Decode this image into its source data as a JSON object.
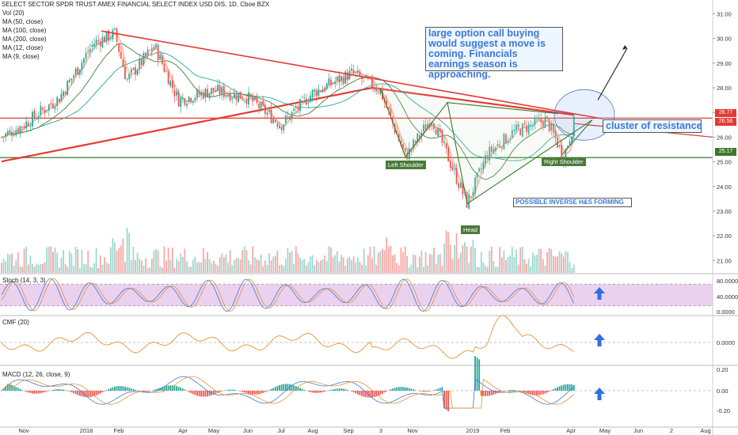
{
  "title": "SELECT SECTOR SPDR TRUST AMEX FINANCIAL SELECT INDEX USD DIS, 1D, Cboe BZX",
  "indicators": [
    "Vol (20)",
    "MA (50, close)",
    "MA (100, close)",
    "MA (200, close)",
    "MA (12, close)",
    "MA (9, close)"
  ],
  "annotations": {
    "option_note": "large option call buying would suggest a move is coming. Financials earnings season is approaching.",
    "cluster": "cluster of resistance",
    "pattern": "POSSIBLE INVERSE H&S FORMING",
    "left_shoulder": "Left Shoulder",
    "head": "Head",
    "right_shoulder": "Right Shoulder"
  },
  "price_tags": [
    "26.77",
    "26.56",
    "25.17"
  ],
  "subpanels": {
    "stoch_label": "Stoch (14, 3, 3)",
    "cmf_label": "CMF (20)",
    "macd_label": "MACD (12, 26, close, 9)"
  },
  "colors": {
    "up": "#26a69a",
    "down": "#ef5350",
    "resistance": "#e53935",
    "support": "#3b7a2a",
    "ma200": "#e53935",
    "ma100": "#26a69a",
    "ma50": "#4a7a3a",
    "annotation_text": "#3c78d8",
    "stoch_band": "#e1bee7"
  },
  "chart_data": {
    "type": "candlestick",
    "x_tick_labels": [
      "Nov",
      "2018",
      "Feb",
      "Apr",
      "May",
      "Jun",
      "Jul",
      "Aug",
      "Sep",
      "3",
      "Nov",
      "2019",
      "Feb",
      "Apr",
      "May",
      "Jun",
      "2",
      "Aug"
    ],
    "y_tick_labels": [
      "31.00",
      "30.00",
      "29.00",
      "28.00",
      "27.00",
      "26.00",
      "25.00",
      "24.00",
      "23.00",
      "22.00",
      "21.00"
    ],
    "ylim": [
      20.5,
      31.3
    ],
    "price_path": [
      [
        "Oct 2017",
        26.0
      ],
      [
        "Nov 2017",
        26.5
      ],
      [
        "Dec 2017",
        27.6
      ],
      [
        "Jan 2018",
        29.8
      ],
      [
        "late Jan 2018",
        30.2
      ],
      [
        "Feb 2018",
        28.3
      ],
      [
        "Mar 2018",
        29.7
      ],
      [
        "Apr 2018",
        27.5
      ],
      [
        "May 2018",
        27.9
      ],
      [
        "Jun 2018",
        27.6
      ],
      [
        "Jul 2018",
        26.5
      ],
      [
        "Aug 2018",
        27.8
      ],
      [
        "Sep 2018",
        28.6
      ],
      [
        "early Oct 2018",
        27.9
      ],
      [
        "Oct 2018 (left shoulder)",
        25.2
      ],
      [
        "Nov 2018",
        26.8
      ],
      [
        "Dec 2018 (head)",
        23.3
      ],
      [
        "Jan 2019",
        25.3
      ],
      [
        "Feb 2019",
        26.2
      ],
      [
        "Mar 2019",
        26.7
      ],
      [
        "late Mar 2019 (right shoulder)",
        25.2
      ],
      [
        "Apr 2019",
        26.6
      ]
    ],
    "levels": {
      "resistance": 26.77,
      "last": 26.56,
      "support": 25.17
    },
    "stoch": {
      "label": "Stoch (14, 3, 3)",
      "y_tick_labels": [
        "80.0000",
        "40.0000",
        "0.0000"
      ],
      "band": [
        20,
        80
      ]
    },
    "cmf": {
      "label": "CMF (20)",
      "y_tick_labels": [
        "0.0000"
      ]
    },
    "macd": {
      "label": "MACD (12, 26, close, 9)",
      "y_tick_labels": [
        "0.20",
        "0.00",
        "-0.20"
      ]
    }
  }
}
